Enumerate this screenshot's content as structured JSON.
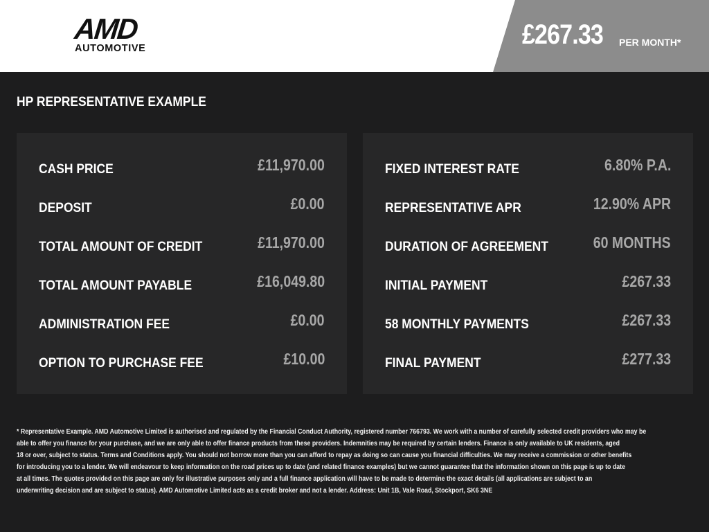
{
  "header": {
    "logo_main": "AMD",
    "logo_sub": "AUTOMOTIVE",
    "price": "£267.33",
    "price_suffix": "PER MONTH*"
  },
  "title": "HP REPRESENTATIVE EXAMPLE",
  "left": [
    {
      "label": "CASH PRICE",
      "value": "£11,970.00"
    },
    {
      "label": "DEPOSIT",
      "value": "£0.00"
    },
    {
      "label": "TOTAL AMOUNT OF CREDIT",
      "value": "£11,970.00"
    },
    {
      "label": "TOTAL AMOUNT PAYABLE",
      "value": "£16,049.80"
    },
    {
      "label": "ADMINISTRATION FEE",
      "value": "£0.00"
    },
    {
      "label": "OPTION TO PURCHASE FEE",
      "value": "£10.00"
    }
  ],
  "right": [
    {
      "label": "FIXED INTEREST RATE",
      "value": "6.80% P.A."
    },
    {
      "label": "REPRESENTATIVE APR",
      "value": "12.90% APR"
    },
    {
      "label": "DURATION OF AGREEMENT",
      "value": "60 MONTHS"
    },
    {
      "label": "INITIAL PAYMENT",
      "value": "£267.33"
    },
    {
      "label": "58 MONTHLY PAYMENTS",
      "value": "£267.33"
    },
    {
      "label": "FINAL PAYMENT",
      "value": "£277.33"
    }
  ],
  "footer": [
    "* Representative Example. AMD Automotive Limited is authorised and regulated by the Financial Conduct Authority, registered number 766793. We work with a number of carefully selected credit providers who may be",
    "able to offer you finance for your purchase, and we are only able to offer finance products from these providers. Indemnities may be required by certain lenders. Finance is only available to UK residents, aged",
    "18 or over, subject to status. Terms and Conditions apply. You should not borrow more than you can afford to repay as doing so can cause you financial difficulties. We may receive a commission or other benefits",
    "for introducing you to a lender. We will endeavour to keep information on the road prices up to date (and related finance examples) but we cannot guarantee that the information shown on this page is up to date",
    "at all times. The quotes provided on this page are only for illustrative purposes only and a full finance application will have to be made to determine the exact details (all applications are subject to an",
    "underwriting decision and are subject to status). AMD Automotive Limited acts as a credit broker and not a lender. Address: Unit 1B, Vale Road, Stockport, SK6 3NE"
  ]
}
